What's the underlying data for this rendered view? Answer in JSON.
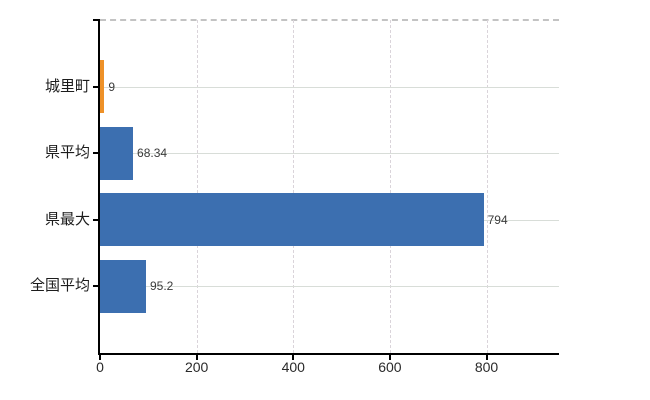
{
  "chart_data": {
    "type": "bar",
    "orientation": "horizontal",
    "title": "",
    "xlabel": "",
    "ylabel": "",
    "categories": [
      "城里町",
      "県平均",
      "県最大",
      "全国平均"
    ],
    "values": [
      9,
      68.34,
      794,
      95.2
    ],
    "value_labels": [
      "9",
      "68.34",
      "794",
      "95.2"
    ],
    "bar_colors": [
      "#EE9128",
      "#3C6FB0",
      "#3C6FB0",
      "#3C6FB0"
    ],
    "xlim": [
      0,
      950
    ],
    "xticks": [
      0,
      200,
      400,
      600,
      800
    ],
    "xtick_labels": [
      "0",
      "200",
      "400",
      "600",
      "800"
    ],
    "grid": true,
    "legend": false
  },
  "style": {
    "background_color": "#ffffff",
    "bar_blue": "#3C6FB0",
    "bar_orange": "#EE9128",
    "axis_color": "#000000",
    "h_gridline_color": "#d8ddd8",
    "v_gridline_color": "#dad4da",
    "top_border_color": "#c3c3c3",
    "value_label_color": "#3b3b3b",
    "tick_label_color": "#2a2a2a",
    "category_label_color": "#1c1c1c"
  }
}
